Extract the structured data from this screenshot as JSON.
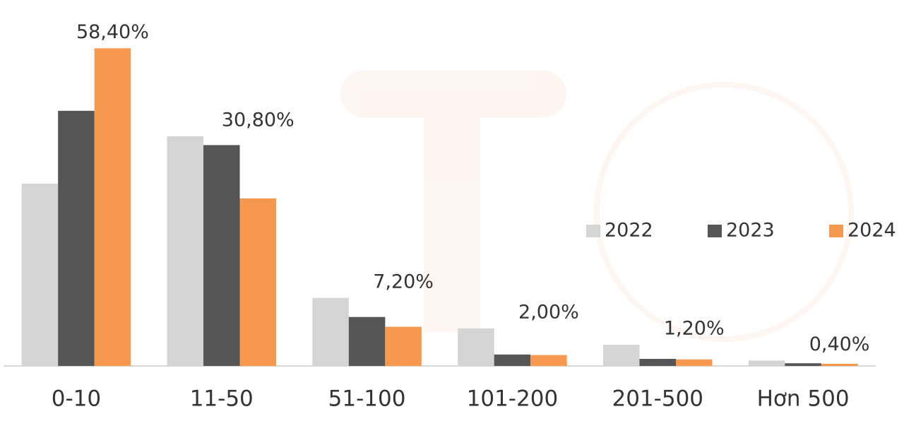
{
  "chart_data": {
    "type": "bar",
    "categories": [
      "0-10",
      "11-50",
      "51-100",
      "101-200",
      "201-500",
      "Hơn 500"
    ],
    "series": [
      {
        "name": "2022",
        "color": "#d4d4d4",
        "values": [
          33.5,
          42.2,
          12.5,
          6.9,
          3.9,
          1.0
        ]
      },
      {
        "name": "2023",
        "color": "#555555",
        "values": [
          46.9,
          40.6,
          9.0,
          2.1,
          1.3,
          0.5
        ]
      },
      {
        "name": "2024",
        "color": "#f7984f",
        "values": [
          58.4,
          30.8,
          7.2,
          2.0,
          1.2,
          0.4
        ],
        "value_labels": [
          "58,40%",
          "30,80%",
          "7,20%",
          "2,00%",
          "1,20%",
          "0,40%"
        ]
      }
    ],
    "ylim": [
      0,
      60
    ]
  }
}
